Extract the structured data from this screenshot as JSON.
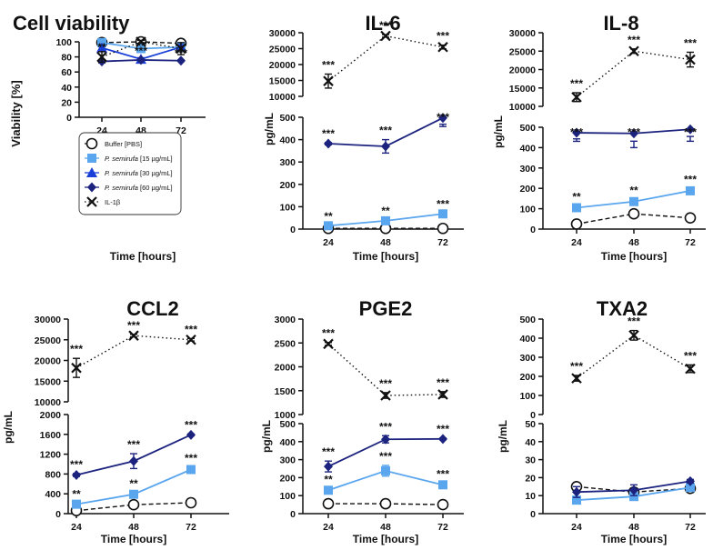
{
  "figure": {
    "legend": {
      "entries": [
        {
          "key": "buffer",
          "label": "Buffer [PBS]",
          "italic_part": ""
        },
        {
          "key": "ps15",
          "label": " [15 µg/mL]",
          "italic_part": "P. semirufa"
        },
        {
          "key": "ps30",
          "label": " [30 µg/mL]",
          "italic_part": "P. semirufa"
        },
        {
          "key": "ps60",
          "label": " [60 µg/mL]",
          "italic_part": "P. semirufa"
        },
        {
          "key": "il1b",
          "label": "IL-1β",
          "italic_part": ""
        }
      ]
    },
    "colors": {
      "buffer": "#111111",
      "ps15": "#5aa6ee",
      "ps30": "#1a3fd8",
      "ps60": "#1c237f",
      "il1b": "#111111",
      "axis": "#111111"
    }
  },
  "chart_data": [
    {
      "type": "line",
      "title": "Cell viability",
      "xlabel": "Time [hours]",
      "ylabel": "Viability  [%]",
      "x": [
        24,
        48,
        72
      ],
      "broken_axis": false,
      "ylim": [
        0,
        100
      ],
      "yticks": [
        "0",
        "20",
        "40",
        "60",
        "80",
        "100"
      ],
      "series": [
        {
          "key": "buffer",
          "values": [
            99,
            100,
            98
          ],
          "err": [
            0,
            1,
            2
          ]
        },
        {
          "key": "ps15",
          "values": [
            99,
            91,
            93
          ],
          "err": [
            1,
            1,
            1
          ]
        },
        {
          "key": "ps30",
          "values": [
            92,
            77,
            93
          ],
          "err": [
            4,
            2,
            3
          ]
        },
        {
          "key": "ps60",
          "values": [
            74,
            76,
            75
          ],
          "err": [
            2,
            1,
            1
          ]
        },
        {
          "key": "il1b",
          "values": [
            80,
            100,
            91
          ],
          "err": [
            7,
            2,
            8
          ]
        }
      ],
      "annotations": [
        {
          "x": 24,
          "y": 88,
          "text": "**"
        },
        {
          "x": 48,
          "y": 90,
          "text": "**"
        },
        {
          "x": 48,
          "y": 83,
          "text": "***"
        },
        {
          "x": 72,
          "y": 80,
          "text": "***"
        }
      ],
      "has_legend": true
    },
    {
      "type": "line",
      "title": "IL-6",
      "xlabel": "Time [hours]",
      "ylabel": "pg/mL",
      "x": [
        24,
        48,
        72
      ],
      "broken_axis": true,
      "lower": {
        "ylim": [
          0,
          500
        ],
        "yticks": [
          "0",
          "100",
          "200",
          "300",
          "400",
          "500"
        ]
      },
      "upper": {
        "ylim": [
          10000,
          30000
        ],
        "yticks": [
          "10000",
          "15000",
          "20000",
          "25000",
          "30000"
        ]
      },
      "series": [
        {
          "key": "buffer",
          "values": [
            3,
            3,
            3
          ],
          "err": [
            0,
            0,
            0
          ]
        },
        {
          "key": "ps15",
          "values": [
            15,
            37,
            68
          ],
          "err": [
            2,
            3,
            4
          ]
        },
        {
          "key": "ps60",
          "values": [
            382,
            370,
            497
          ],
          "err": [
            5,
            30,
            28
          ]
        },
        {
          "key": "il1b",
          "values": [
            14800,
            29000,
            25500
          ],
          "err": [
            2200,
            400,
            600
          ]
        }
      ],
      "annotations": [
        {
          "x": 24,
          "text": "**",
          "series": "ps15"
        },
        {
          "x": 48,
          "text": "**",
          "series": "ps15"
        },
        {
          "x": 72,
          "text": "***",
          "series": "ps15"
        },
        {
          "x": 24,
          "text": "***",
          "series": "ps60"
        },
        {
          "x": 48,
          "text": "***",
          "series": "ps60"
        },
        {
          "x": 72,
          "text": "***",
          "series": "ps60"
        },
        {
          "x": 24,
          "text": "***",
          "series": "il1b"
        },
        {
          "x": 48,
          "text": "***",
          "series": "il1b"
        },
        {
          "x": 72,
          "text": "***",
          "series": "il1b"
        }
      ]
    },
    {
      "type": "line",
      "title": "IL-8",
      "xlabel": "Time [hours]",
      "ylabel": "pg/mL",
      "x": [
        24,
        48,
        72
      ],
      "broken_axis": true,
      "lower": {
        "ylim": [
          0,
          500
        ],
        "yticks": [
          "0",
          "100",
          "200",
          "300",
          "400",
          "500"
        ]
      },
      "upper": {
        "ylim": [
          10000,
          30000
        ],
        "yticks": [
          "10000",
          "15000",
          "20000",
          "25000",
          "30000"
        ]
      },
      "series": [
        {
          "key": "buffer",
          "values": [
            25,
            75,
            55
          ],
          "err": [
            3,
            5,
            4
          ]
        },
        {
          "key": "ps15",
          "values": [
            105,
            135,
            188
          ],
          "err": [
            8,
            10,
            10
          ]
        },
        {
          "key": "ps60",
          "values": [
            473,
            470,
            490
          ],
          "err": [
            30,
            70,
            35
          ]
        },
        {
          "key": "il1b",
          "values": [
            12500,
            25000,
            22700
          ],
          "err": [
            1200,
            600,
            2000
          ]
        }
      ],
      "annotations": [
        {
          "x": 24,
          "text": "**",
          "series": "ps15"
        },
        {
          "x": 48,
          "text": "**",
          "series": "ps15"
        },
        {
          "x": 72,
          "text": "***",
          "series": "ps15"
        },
        {
          "x": 24,
          "text": "***",
          "series": "ps60"
        },
        {
          "x": 48,
          "text": "***",
          "series": "ps60"
        },
        {
          "x": 72,
          "text": "***",
          "series": "ps60"
        },
        {
          "x": 24,
          "text": "***",
          "series": "il1b"
        },
        {
          "x": 48,
          "text": "***",
          "series": "il1b"
        },
        {
          "x": 72,
          "text": "***",
          "series": "il1b"
        }
      ]
    },
    {
      "type": "line",
      "title": "CCL2",
      "xlabel": "Time [hours]",
      "ylabel": "pg/mL",
      "x": [
        24,
        48,
        72
      ],
      "broken_axis": true,
      "lower": {
        "ylim": [
          0,
          2000
        ],
        "yticks": [
          "0",
          "400",
          "800",
          "1200",
          "1600",
          "2000"
        ]
      },
      "upper": {
        "ylim": [
          10000,
          30000
        ],
        "yticks": [
          "10000",
          "15000",
          "20000",
          "25000",
          "30000"
        ]
      },
      "series": [
        {
          "key": "buffer",
          "values": [
            60,
            180,
            220
          ],
          "err": [
            5,
            10,
            10
          ]
        },
        {
          "key": "ps15",
          "values": [
            190,
            390,
            890
          ],
          "err": [
            20,
            30,
            50
          ]
        },
        {
          "key": "ps60",
          "values": [
            780,
            1060,
            1590
          ],
          "err": [
            30,
            150,
            20
          ]
        },
        {
          "key": "il1b",
          "values": [
            18200,
            26000,
            25000
          ],
          "err": [
            2300,
            300,
            300
          ]
        }
      ],
      "annotations": [
        {
          "x": 24,
          "text": "**",
          "series": "ps15"
        },
        {
          "x": 48,
          "text": "**",
          "series": "ps15"
        },
        {
          "x": 72,
          "text": "***",
          "series": "ps15"
        },
        {
          "x": 24,
          "text": "***",
          "series": "ps60"
        },
        {
          "x": 48,
          "text": "***",
          "series": "ps60"
        },
        {
          "x": 72,
          "text": "***",
          "series": "ps60"
        },
        {
          "x": 24,
          "text": "***",
          "series": "il1b"
        },
        {
          "x": 48,
          "text": "***",
          "series": "il1b"
        },
        {
          "x": 72,
          "text": "***",
          "series": "il1b"
        }
      ]
    },
    {
      "type": "line",
      "title": "PGE2",
      "xlabel": "Time [hours]",
      "ylabel": "pg/mL",
      "x": [
        24,
        48,
        72
      ],
      "broken_axis": true,
      "lower": {
        "ylim": [
          0,
          500
        ],
        "yticks": [
          "0",
          "100",
          "200",
          "300",
          "400",
          "500"
        ]
      },
      "upper": {
        "ylim": [
          1000,
          3000
        ],
        "yticks": [
          "1000",
          "1500",
          "2000",
          "2500",
          "3000"
        ]
      },
      "series": [
        {
          "key": "buffer",
          "values": [
            55,
            55,
            50
          ],
          "err": [
            3,
            3,
            3
          ]
        },
        {
          "key": "ps15",
          "values": [
            130,
            238,
            160
          ],
          "err": [
            10,
            30,
            10
          ]
        },
        {
          "key": "ps60",
          "values": [
            262,
            413,
            415
          ],
          "err": [
            30,
            20,
            5
          ]
        },
        {
          "key": "il1b",
          "values": [
            2480,
            1400,
            1420
          ],
          "err": [
            30,
            60,
            60
          ]
        }
      ],
      "annotations": [
        {
          "x": 24,
          "text": "**",
          "series": "ps15"
        },
        {
          "x": 48,
          "text": "***",
          "series": "ps15"
        },
        {
          "x": 72,
          "text": "***",
          "series": "ps15"
        },
        {
          "x": 24,
          "text": "***",
          "series": "ps60"
        },
        {
          "x": 48,
          "text": "***",
          "series": "ps60"
        },
        {
          "x": 72,
          "text": "***",
          "series": "ps60"
        },
        {
          "x": 24,
          "text": "***",
          "series": "il1b"
        },
        {
          "x": 48,
          "text": "***",
          "series": "il1b"
        },
        {
          "x": 72,
          "text": "***",
          "series": "il1b"
        }
      ]
    },
    {
      "type": "line",
      "title": "TXA2",
      "xlabel": "Time [hours]",
      "ylabel": "pg/mL",
      "x": [
        24,
        48,
        72
      ],
      "broken_axis": true,
      "lower": {
        "ylim": [
          0,
          50
        ],
        "yticks": [
          "0",
          "10",
          "20",
          "30",
          "40",
          "50"
        ]
      },
      "upper": {
        "ylim": [
          0,
          500
        ],
        "yticks": [
          "0",
          "100",
          "200",
          "300",
          "400",
          "500"
        ]
      },
      "series": [
        {
          "key": "buffer",
          "values": [
            15,
            12,
            14
          ],
          "err": [
            2,
            2,
            2
          ]
        },
        {
          "key": "ps15",
          "values": [
            7.5,
            9.5,
            14.5
          ],
          "err": [
            1,
            2,
            1
          ]
        },
        {
          "key": "ps60",
          "values": [
            12,
            13,
            18
          ],
          "err": [
            3,
            3,
            1
          ]
        },
        {
          "key": "il1b",
          "values": [
            190,
            415,
            240
          ],
          "err": [
            15,
            25,
            20
          ]
        }
      ],
      "annotations": [
        {
          "x": 24,
          "text": "***",
          "series": "il1b"
        },
        {
          "x": 48,
          "text": "***",
          "series": "il1b"
        },
        {
          "x": 72,
          "text": "***",
          "series": "il1b"
        }
      ]
    }
  ]
}
